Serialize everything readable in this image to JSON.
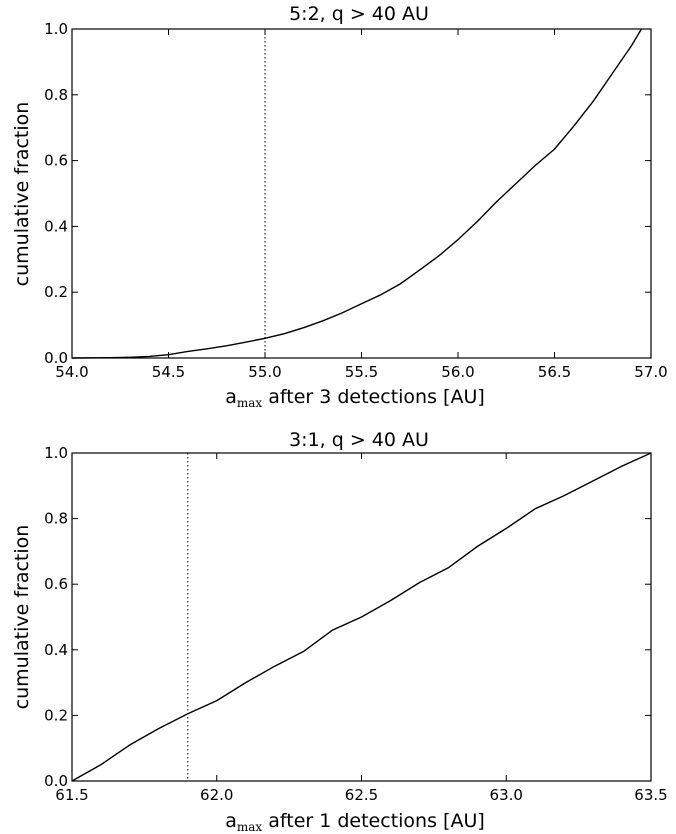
{
  "chart_data": [
    {
      "type": "line",
      "title": "5:2, q > 40 AU",
      "xlabel_main": "a",
      "xlabel_sub": "max",
      "xlabel_rest": " after 3 detections [AU]",
      "ylabel": "cumulative fraction",
      "xlim": [
        54.0,
        57.0
      ],
      "ylim": [
        0.0,
        1.0
      ],
      "xticks": [
        "54.0",
        "54.5",
        "55.0",
        "55.5",
        "56.0",
        "56.5",
        "57.0"
      ],
      "yticks": [
        "0.0",
        "0.2",
        "0.4",
        "0.6",
        "0.8",
        "1.0"
      ],
      "grid": false,
      "marker_line_x": 55.0,
      "series": [
        {
          "x": [
            54.0,
            54.2,
            54.3,
            54.4,
            54.5,
            54.6,
            54.7,
            54.8,
            54.9,
            55.0,
            55.1,
            55.2,
            55.3,
            55.4,
            55.5,
            55.6,
            55.7,
            55.8,
            55.9,
            56.0,
            56.1,
            56.2,
            56.3,
            56.4,
            56.5,
            56.6,
            56.7,
            56.8,
            56.9,
            56.95
          ],
          "y": [
            0.0,
            0.001,
            0.002,
            0.005,
            0.01,
            0.02,
            0.028,
            0.037,
            0.048,
            0.06,
            0.074,
            0.092,
            0.113,
            0.137,
            0.165,
            0.192,
            0.225,
            0.267,
            0.31,
            0.36,
            0.415,
            0.475,
            0.53,
            0.585,
            0.635,
            0.705,
            0.78,
            0.865,
            0.95,
            1.0
          ]
        }
      ]
    },
    {
      "type": "line",
      "title": "3:1, q > 40 AU",
      "xlabel_main": "a",
      "xlabel_sub": "max",
      "xlabel_rest": " after 1 detections [AU]",
      "ylabel": "cumulative fraction",
      "xlim": [
        61.5,
        63.5
      ],
      "ylim": [
        0.0,
        1.0
      ],
      "xticks": [
        "61.5",
        "62.0",
        "62.5",
        "63.0",
        "63.5"
      ],
      "yticks": [
        "0.0",
        "0.2",
        "0.4",
        "0.6",
        "0.8",
        "1.0"
      ],
      "grid": false,
      "marker_line_x": 61.9,
      "series": [
        {
          "x": [
            61.5,
            61.6,
            61.7,
            61.8,
            61.9,
            62.0,
            62.1,
            62.2,
            62.3,
            62.4,
            62.5,
            62.6,
            62.7,
            62.8,
            62.9,
            63.0,
            63.1,
            63.2,
            63.3,
            63.4,
            63.5
          ],
          "y": [
            0.0,
            0.05,
            0.11,
            0.16,
            0.205,
            0.245,
            0.3,
            0.35,
            0.395,
            0.46,
            0.5,
            0.55,
            0.605,
            0.65,
            0.715,
            0.77,
            0.83,
            0.87,
            0.915,
            0.96,
            1.0
          ]
        }
      ]
    }
  ]
}
